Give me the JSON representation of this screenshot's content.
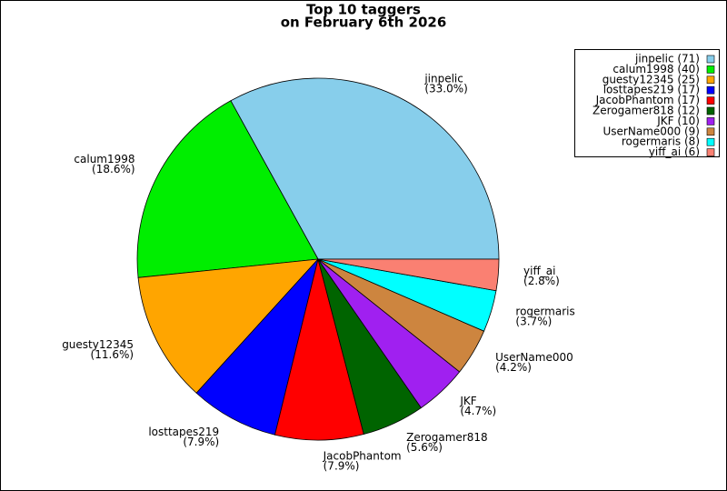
{
  "chart_data": {
    "type": "pie",
    "title": [
      "Top 10 taggers",
      "on February 6th 2026"
    ],
    "categories": [
      "jinpelic",
      "calum1998",
      "guesty12345",
      "losttapes219",
      "JacobPhantom",
      "Zerogamer818",
      "JKF",
      "UserName000",
      "rogermaris",
      "yiff_ai"
    ],
    "values": [
      71,
      40,
      25,
      17,
      17,
      12,
      10,
      9,
      8,
      6
    ],
    "value_labels": [
      "(33.0%)",
      "(18.6%)",
      "(11.6%)",
      "(7.9%)",
      "(7.9%)",
      "(5.6%)",
      "(4.7%)",
      "(4.2%)",
      "(3.7%)",
      "(2.8%)"
    ],
    "legend_labels": [
      "jinpelic (71)",
      "calum1998 (40)",
      "guesty12345 (25)",
      "losttapes219 (17)",
      "JacobPhantom (17)",
      "Zerogamer818 (12)",
      "JKF (10)",
      "UserName000 (9)",
      "rogermaris (8)",
      "yiff_ai (6)"
    ],
    "colors": [
      "#87ceeb",
      "#00ee00",
      "#ffa500",
      "#0000ff",
      "#ff0000",
      "#006400",
      "#a020f0",
      "#cd853f",
      "#00ffff",
      "#fa8072"
    ],
    "legend": "upper right"
  }
}
